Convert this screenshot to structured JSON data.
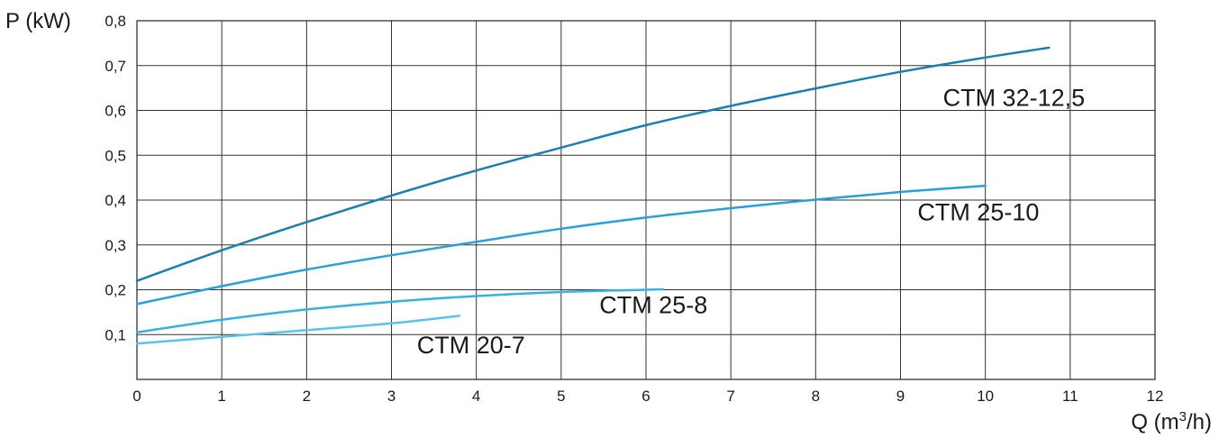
{
  "chart_data": {
    "type": "line",
    "ylabel": "P (kW)",
    "xlabel_base": "Q (m",
    "xlabel_sup": "3",
    "xlabel_tail": "/h)",
    "xlim": [
      0,
      12
    ],
    "ylim": [
      0,
      0.8
    ],
    "x_ticks": [
      0,
      1,
      2,
      3,
      4,
      5,
      6,
      7,
      8,
      9,
      10,
      11,
      12
    ],
    "x_tick_labels": [
      "0",
      "1",
      "2",
      "3",
      "4",
      "5",
      "6",
      "7",
      "8",
      "9",
      "10",
      "11",
      "12"
    ],
    "y_ticks": [
      0.1,
      0.2,
      0.3,
      0.4,
      0.5,
      0.6,
      0.7,
      0.8
    ],
    "y_tick_labels": [
      "0,1",
      "0,2",
      "0,3",
      "0,4",
      "0,5",
      "0,6",
      "0,7",
      "0,8"
    ],
    "grid": true,
    "series": [
      {
        "name": "CTM 32-12,5",
        "color": "#1a7fb5",
        "label_anchor": [
          9.5,
          0.61
        ],
        "points": [
          [
            0,
            0.22
          ],
          [
            1,
            0.288
          ],
          [
            2,
            0.351
          ],
          [
            3,
            0.41
          ],
          [
            4,
            0.466
          ],
          [
            5,
            0.517
          ],
          [
            6,
            0.567
          ],
          [
            7,
            0.61
          ],
          [
            8,
            0.649
          ],
          [
            9,
            0.686
          ],
          [
            10,
            0.718
          ],
          [
            10.75,
            0.74
          ]
        ]
      },
      {
        "name": "CTM 25-10",
        "color": "#2a9fd8",
        "label_anchor": [
          9.2,
          0.355
        ],
        "points": [
          [
            0,
            0.168
          ],
          [
            1,
            0.208
          ],
          [
            2,
            0.245
          ],
          [
            3,
            0.277
          ],
          [
            4,
            0.307
          ],
          [
            5,
            0.336
          ],
          [
            6,
            0.361
          ],
          [
            7,
            0.382
          ],
          [
            8,
            0.401
          ],
          [
            9,
            0.418
          ],
          [
            10,
            0.432
          ]
        ]
      },
      {
        "name": "CTM 25-8",
        "color": "#38b1e2",
        "label_anchor": [
          5.45,
          0.148
        ],
        "points": [
          [
            0,
            0.105
          ],
          [
            1,
            0.133
          ],
          [
            2,
            0.156
          ],
          [
            3,
            0.173
          ],
          [
            4,
            0.186
          ],
          [
            5,
            0.195
          ],
          [
            6,
            0.2
          ],
          [
            6.2,
            0.201
          ]
        ]
      },
      {
        "name": "CTM 20-7",
        "color": "#55c5ea",
        "label_anchor": [
          3.3,
          0.058
        ],
        "points": [
          [
            0,
            0.08
          ],
          [
            1,
            0.095
          ],
          [
            2,
            0.11
          ],
          [
            3,
            0.125
          ],
          [
            3.8,
            0.142
          ]
        ]
      }
    ]
  }
}
